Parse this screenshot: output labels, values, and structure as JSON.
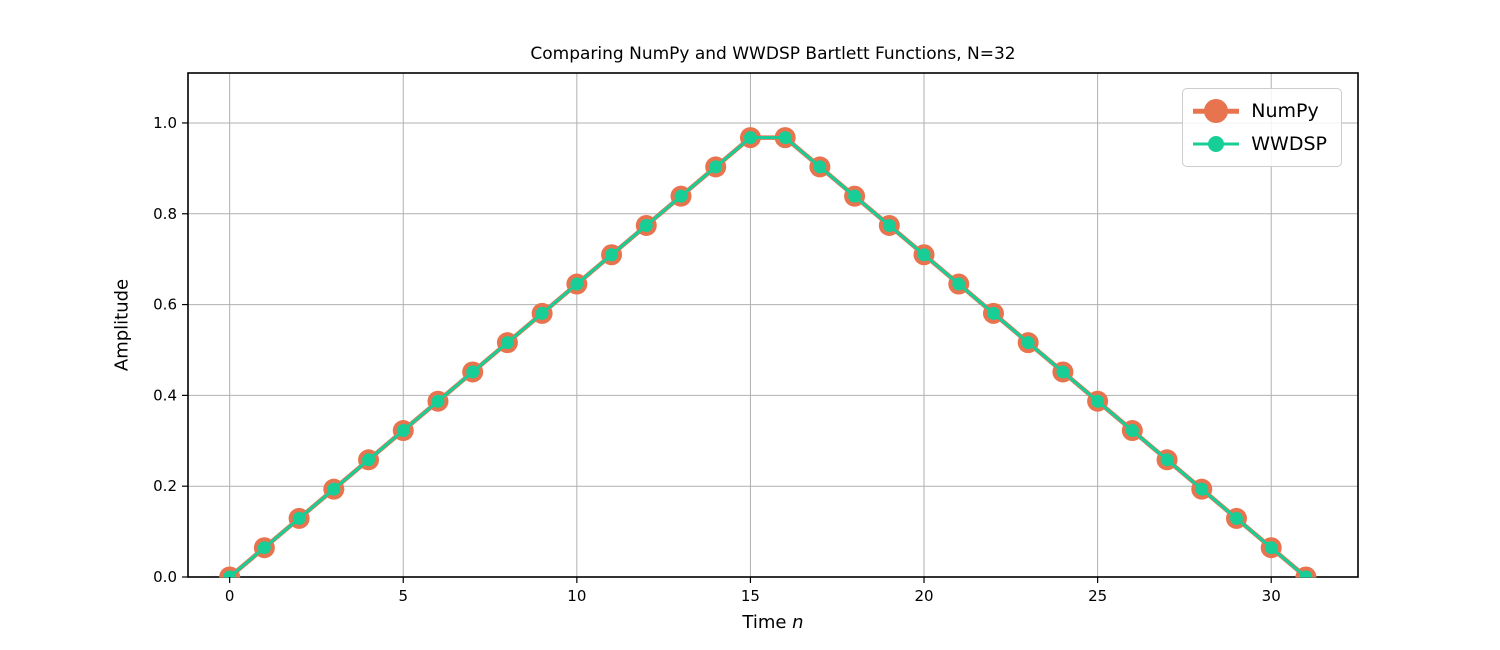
{
  "chart_data": {
    "type": "line",
    "title": "Comparing NumPy and WWDSP Bartlett Functions, N=32",
    "xlabel": "Time n",
    "xlabel_parts": {
      "prefix": "Time ",
      "italic_var": "n"
    },
    "ylabel": "Amplitude",
    "x": [
      0,
      1,
      2,
      3,
      4,
      5,
      6,
      7,
      8,
      9,
      10,
      11,
      12,
      13,
      14,
      15,
      16,
      17,
      18,
      19,
      20,
      21,
      22,
      23,
      24,
      25,
      26,
      27,
      28,
      29,
      30,
      31
    ],
    "series": [
      {
        "name": "NumPy",
        "color": "#E8744F",
        "line_width": 4.5,
        "marker_size": 21,
        "values": [
          0.0,
          0.0645,
          0.129,
          0.1935,
          0.2581,
          0.3226,
          0.3871,
          0.4516,
          0.5161,
          0.5806,
          0.6452,
          0.7097,
          0.7742,
          0.8387,
          0.9032,
          0.9677,
          0.9677,
          0.9032,
          0.8387,
          0.7742,
          0.7097,
          0.6452,
          0.5806,
          0.5161,
          0.4516,
          0.3871,
          0.3226,
          0.2581,
          0.1935,
          0.129,
          0.0645,
          0.0
        ]
      },
      {
        "name": "WWDSP",
        "color": "#17CE96",
        "line_width": 3,
        "marker_size": 13,
        "values": [
          0.0,
          0.0645,
          0.129,
          0.1935,
          0.2581,
          0.3226,
          0.3871,
          0.4516,
          0.5161,
          0.5806,
          0.6452,
          0.7097,
          0.7742,
          0.8387,
          0.9032,
          0.9677,
          0.9677,
          0.9032,
          0.8387,
          0.7742,
          0.7097,
          0.6452,
          0.5806,
          0.5161,
          0.4516,
          0.3871,
          0.3226,
          0.2581,
          0.1935,
          0.129,
          0.0645,
          0.0
        ]
      }
    ],
    "xlim": [
      -1.2,
      32.5
    ],
    "ylim": [
      0,
      1.11
    ],
    "xticks": [
      0,
      5,
      10,
      15,
      20,
      25,
      30
    ],
    "xticklabels": [
      "0",
      "5",
      "10",
      "15",
      "20",
      "25",
      "30"
    ],
    "yticks": [
      0.0,
      0.2,
      0.4,
      0.6,
      0.8,
      1.0
    ],
    "yticklabels": [
      "0.0",
      "0.2",
      "0.4",
      "0.6",
      "0.8",
      "1.0"
    ],
    "grid": true,
    "legend": {
      "position": "upper right",
      "entries": [
        "NumPy",
        "WWDSP"
      ]
    },
    "colors": {
      "background": "#ffffff",
      "grid": "#b0b0b0",
      "spine": "#000000",
      "tick_text": "#000000",
      "legend_border": "#cccccc"
    }
  }
}
